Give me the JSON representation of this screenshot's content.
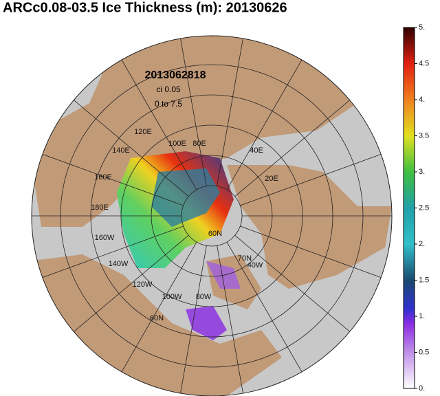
{
  "title": "ARCc0.08-03.5 Ice Thickness (m): 20130626",
  "map": {
    "date": "2013062818",
    "contour_interval": "ci 0.05",
    "range": "0 to 7.5",
    "labels": [
      "120E",
      "140E",
      "160E",
      "180E",
      "160W",
      "140W",
      "120W",
      "100W",
      "80W",
      "100E",
      "80E",
      "40E",
      "20E",
      "60N",
      "70N",
      "40W",
      "60N"
    ]
  },
  "colorbar": {
    "lim": [
      0,
      5
    ],
    "ticks": [
      {
        "value": 0,
        "label": "0."
      },
      0.5,
      {
        "value": 1,
        "label": "1."
      },
      1.5,
      {
        "value": 2,
        "label": "2."
      },
      2.5,
      {
        "value": 3,
        "label": "3."
      },
      3.5,
      {
        "value": 4,
        "label": "4."
      },
      4.5,
      {
        "value": 5,
        "label": "5."
      }
    ]
  }
}
